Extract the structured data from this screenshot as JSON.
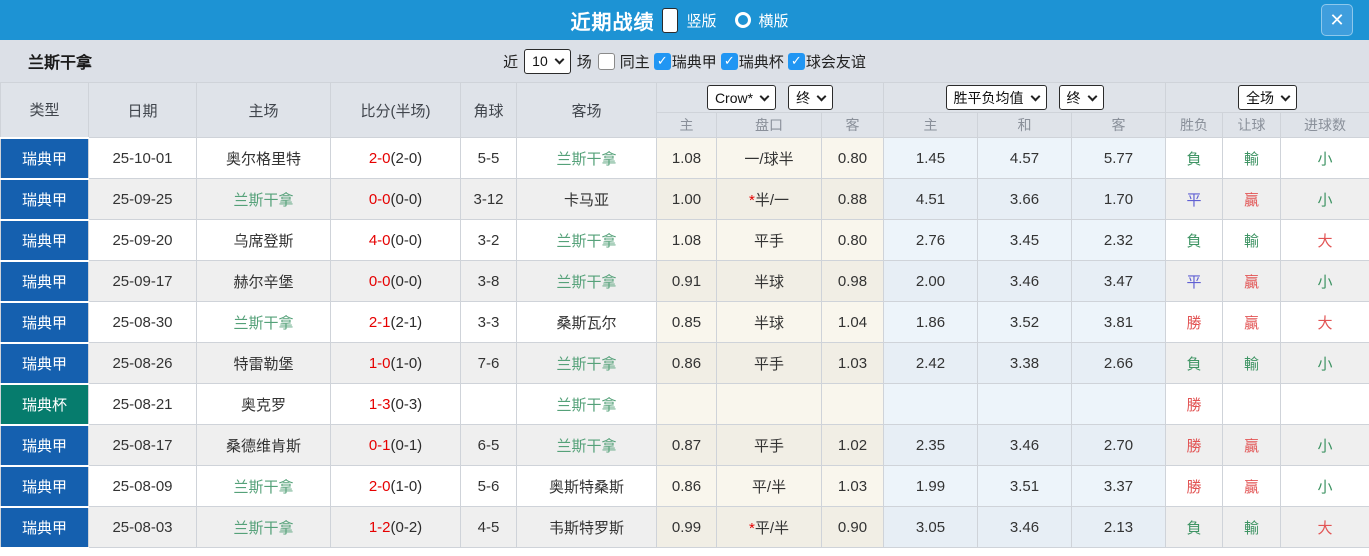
{
  "titlebar": {
    "title": "近期战绩",
    "layout_options": [
      {
        "label": "竖版",
        "selected": true
      },
      {
        "label": "横版",
        "selected": false
      }
    ],
    "close_glyph": "✕"
  },
  "filterbar": {
    "team": "兰斯干拿",
    "near_label": "近",
    "recent_count": "10",
    "matches_label": "场",
    "filters": [
      {
        "label": "同主",
        "checked": false
      },
      {
        "label": "瑞典甲",
        "checked": true
      },
      {
        "label": "瑞典杯",
        "checked": true
      },
      {
        "label": "球会友谊",
        "checked": true
      }
    ]
  },
  "colors": {
    "titlebar_blue": "#1d93d4",
    "league_badge_blue": "#1560af",
    "cup_badge_teal": "#067c6d",
    "score_red": "#e60000",
    "team_highlight_green": "#55a179",
    "result_win_red": "#e25454",
    "result_lose_green": "#3f9464",
    "result_draw_blue": "#5f5fd3",
    "checkbox_blue": "#2196f3"
  },
  "table": {
    "main_headers": {
      "type": "类型",
      "date": "日期",
      "home": "主场",
      "score": "比分(半场)",
      "corner": "角球",
      "away": "客场"
    },
    "odds_group": {
      "bookmaker": "Crow*",
      "state": "终",
      "cols": [
        "主",
        "盘口",
        "客"
      ]
    },
    "avg_group": {
      "label": "胜平负均值",
      "state": "终",
      "cols": [
        "主",
        "和",
        "客"
      ]
    },
    "result_group": {
      "label": "全场",
      "cols": [
        "胜负",
        "让球",
        "进球数"
      ]
    },
    "rows": [
      {
        "type": "瑞典甲",
        "cup": false,
        "date": "25-10-01",
        "home": "奥尔格里特",
        "home_hl": false,
        "ft": "2-0",
        "ht": "(2-0)",
        "corner": "5-5",
        "away": "兰斯干拿",
        "away_hl": true,
        "o_home": "1.08",
        "o_hcap": "一/球半",
        "o_star": false,
        "o_away": "0.80",
        "a_win": "1.45",
        "a_draw": "4.57",
        "a_lose": "5.77",
        "r_wdl": "負",
        "r_wdl_c": "g",
        "r_let": "輸",
        "r_let_c": "g",
        "r_goal": "小",
        "r_goal_c": "g"
      },
      {
        "type": "瑞典甲",
        "cup": false,
        "date": "25-09-25",
        "home": "兰斯干拿",
        "home_hl": true,
        "ft": "0-0",
        "ht": "(0-0)",
        "corner": "3-12",
        "away": "卡马亚",
        "away_hl": false,
        "o_home": "1.00",
        "o_hcap": "半/一",
        "o_star": true,
        "o_away": "0.88",
        "a_win": "4.51",
        "a_draw": "3.66",
        "a_lose": "1.70",
        "r_wdl": "平",
        "r_wdl_c": "b",
        "r_let": "贏",
        "r_let_c": "r",
        "r_goal": "小",
        "r_goal_c": "g"
      },
      {
        "type": "瑞典甲",
        "cup": false,
        "date": "25-09-20",
        "home": "乌席登斯",
        "home_hl": false,
        "ft": "4-0",
        "ht": "(0-0)",
        "corner": "3-2",
        "away": "兰斯干拿",
        "away_hl": true,
        "o_home": "1.08",
        "o_hcap": "平手",
        "o_star": false,
        "o_away": "0.80",
        "a_win": "2.76",
        "a_draw": "3.45",
        "a_lose": "2.32",
        "r_wdl": "負",
        "r_wdl_c": "g",
        "r_let": "輸",
        "r_let_c": "g",
        "r_goal": "大",
        "r_goal_c": "r"
      },
      {
        "type": "瑞典甲",
        "cup": false,
        "date": "25-09-17",
        "home": "赫尔辛堡",
        "home_hl": false,
        "ft": "0-0",
        "ht": "(0-0)",
        "corner": "3-8",
        "away": "兰斯干拿",
        "away_hl": true,
        "o_home": "0.91",
        "o_hcap": "半球",
        "o_star": false,
        "o_away": "0.98",
        "a_win": "2.00",
        "a_draw": "3.46",
        "a_lose": "3.47",
        "r_wdl": "平",
        "r_wdl_c": "b",
        "r_let": "贏",
        "r_let_c": "r",
        "r_goal": "小",
        "r_goal_c": "g"
      },
      {
        "type": "瑞典甲",
        "cup": false,
        "date": "25-08-30",
        "home": "兰斯干拿",
        "home_hl": true,
        "ft": "2-1",
        "ht": "(2-1)",
        "corner": "3-3",
        "away": "桑斯瓦尔",
        "away_hl": false,
        "o_home": "0.85",
        "o_hcap": "半球",
        "o_star": false,
        "o_away": "1.04",
        "a_win": "1.86",
        "a_draw": "3.52",
        "a_lose": "3.81",
        "r_wdl": "勝",
        "r_wdl_c": "r",
        "r_let": "贏",
        "r_let_c": "r",
        "r_goal": "大",
        "r_goal_c": "r"
      },
      {
        "type": "瑞典甲",
        "cup": false,
        "date": "25-08-26",
        "home": "特雷勒堡",
        "home_hl": false,
        "ft": "1-0",
        "ht": "(1-0)",
        "corner": "7-6",
        "away": "兰斯干拿",
        "away_hl": true,
        "o_home": "0.86",
        "o_hcap": "平手",
        "o_star": false,
        "o_away": "1.03",
        "a_win": "2.42",
        "a_draw": "3.38",
        "a_lose": "2.66",
        "r_wdl": "負",
        "r_wdl_c": "g",
        "r_let": "輸",
        "r_let_c": "g",
        "r_goal": "小",
        "r_goal_c": "g"
      },
      {
        "type": "瑞典杯",
        "cup": true,
        "date": "25-08-21",
        "home": "奥克罗",
        "home_hl": false,
        "ft": "1-3",
        "ht": "(0-3)",
        "corner": "",
        "away": "兰斯干拿",
        "away_hl": true,
        "o_home": "",
        "o_hcap": "",
        "o_star": false,
        "o_away": "",
        "a_win": "",
        "a_draw": "",
        "a_lose": "",
        "r_wdl": "勝",
        "r_wdl_c": "r",
        "r_let": "",
        "r_let_c": "g",
        "r_goal": "",
        "r_goal_c": "g"
      },
      {
        "type": "瑞典甲",
        "cup": false,
        "date": "25-08-17",
        "home": "桑德维肯斯",
        "home_hl": false,
        "ft": "0-1",
        "ht": "(0-1)",
        "corner": "6-5",
        "away": "兰斯干拿",
        "away_hl": true,
        "o_home": "0.87",
        "o_hcap": "平手",
        "o_star": false,
        "o_away": "1.02",
        "a_win": "2.35",
        "a_draw": "3.46",
        "a_lose": "2.70",
        "r_wdl": "勝",
        "r_wdl_c": "r",
        "r_let": "贏",
        "r_let_c": "r",
        "r_goal": "小",
        "r_goal_c": "g"
      },
      {
        "type": "瑞典甲",
        "cup": false,
        "date": "25-08-09",
        "home": "兰斯干拿",
        "home_hl": true,
        "ft": "2-0",
        "ht": "(1-0)",
        "corner": "5-6",
        "away": "奥斯特桑斯",
        "away_hl": false,
        "o_home": "0.86",
        "o_hcap": "平/半",
        "o_star": false,
        "o_away": "1.03",
        "a_win": "1.99",
        "a_draw": "3.51",
        "a_lose": "3.37",
        "r_wdl": "勝",
        "r_wdl_c": "r",
        "r_let": "贏",
        "r_let_c": "r",
        "r_goal": "小",
        "r_goal_c": "g"
      },
      {
        "type": "瑞典甲",
        "cup": false,
        "date": "25-08-03",
        "home": "兰斯干拿",
        "home_hl": true,
        "ft": "1-2",
        "ht": "(0-2)",
        "corner": "4-5",
        "away": "韦斯特罗斯",
        "away_hl": false,
        "o_home": "0.99",
        "o_hcap": "平/半",
        "o_star": true,
        "o_away": "0.90",
        "a_win": "3.05",
        "a_draw": "3.46",
        "a_lose": "2.13",
        "r_wdl": "負",
        "r_wdl_c": "g",
        "r_let": "輸",
        "r_let_c": "g",
        "r_goal": "大",
        "r_goal_c": "r"
      }
    ]
  }
}
